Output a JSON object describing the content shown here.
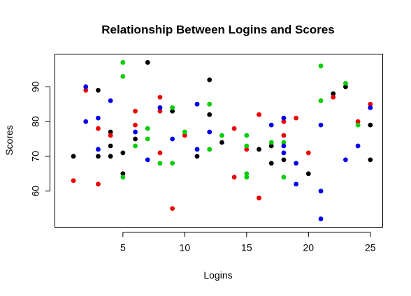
{
  "chart_data": {
    "type": "scatter",
    "title": "Relationship Between Logins and Scores",
    "xlabel": "Logins",
    "ylabel": "Scores",
    "xlim": [
      -0.5,
      26
    ],
    "ylim": [
      49.6,
      99.4
    ],
    "x_ticks": [
      5,
      10,
      15,
      20,
      25
    ],
    "y_ticks": [
      60,
      70,
      80,
      90
    ],
    "grid": false,
    "legend": "none",
    "colors": {
      "black": "#000000",
      "red": "#ee0000",
      "green": "#00cc00",
      "blue": "#0000ee"
    },
    "series": [
      {
        "color": "#000000",
        "points": [
          [
            1,
            70
          ],
          [
            3,
            89
          ],
          [
            3,
            70
          ],
          [
            4,
            77
          ],
          [
            4,
            73
          ],
          [
            4,
            70
          ],
          [
            5,
            71
          ],
          [
            5,
            65
          ],
          [
            6,
            75
          ],
          [
            7,
            97
          ],
          [
            9,
            83
          ],
          [
            11,
            70
          ],
          [
            12,
            92
          ],
          [
            12,
            82
          ],
          [
            13,
            74
          ],
          [
            16,
            72
          ],
          [
            17,
            73
          ],
          [
            17,
            68
          ],
          [
            18,
            69
          ],
          [
            20,
            65
          ],
          [
            22,
            88
          ],
          [
            23,
            90
          ],
          [
            25,
            79
          ],
          [
            25,
            69
          ]
        ]
      },
      {
        "color": "#ee0000",
        "points": [
          [
            1,
            63
          ],
          [
            2,
            89
          ],
          [
            3,
            78
          ],
          [
            3,
            62
          ],
          [
            4,
            76
          ],
          [
            6,
            83
          ],
          [
            6,
            79
          ],
          [
            8,
            87
          ],
          [
            8,
            83
          ],
          [
            8,
            71
          ],
          [
            9,
            55
          ],
          [
            10,
            76
          ],
          [
            14,
            78
          ],
          [
            14,
            64
          ],
          [
            15,
            72
          ],
          [
            16,
            82
          ],
          [
            16,
            58
          ],
          [
            18,
            80
          ],
          [
            18,
            76
          ],
          [
            19,
            81
          ],
          [
            20,
            71
          ],
          [
            22,
            87
          ],
          [
            24,
            80
          ],
          [
            25,
            85
          ]
        ]
      },
      {
        "color": "#00cc00",
        "points": [
          [
            5,
            97
          ],
          [
            5,
            93
          ],
          [
            5,
            64
          ],
          [
            6,
            73
          ],
          [
            7,
            78
          ],
          [
            7,
            75
          ],
          [
            8,
            68
          ],
          [
            9,
            84
          ],
          [
            9,
            68
          ],
          [
            10,
            77
          ],
          [
            12,
            85
          ],
          [
            12,
            72
          ],
          [
            13,
            76
          ],
          [
            15,
            76
          ],
          [
            15,
            73
          ],
          [
            15,
            65
          ],
          [
            15,
            64
          ],
          [
            17,
            74
          ],
          [
            18,
            74
          ],
          [
            18,
            64
          ],
          [
            21,
            96
          ],
          [
            21,
            86
          ],
          [
            23,
            91
          ],
          [
            24,
            79
          ]
        ]
      },
      {
        "color": "#0000ee",
        "points": [
          [
            2,
            90
          ],
          [
            2,
            80
          ],
          [
            3,
            81
          ],
          [
            3,
            72
          ],
          [
            4,
            86
          ],
          [
            6,
            77
          ],
          [
            7,
            69
          ],
          [
            8,
            84
          ],
          [
            9,
            75
          ],
          [
            11,
            85
          ],
          [
            11,
            72
          ],
          [
            12,
            77
          ],
          [
            17,
            79
          ],
          [
            18,
            81
          ],
          [
            18,
            73
          ],
          [
            18,
            71
          ],
          [
            19,
            68
          ],
          [
            19,
            62
          ],
          [
            21,
            79
          ],
          [
            21,
            60
          ],
          [
            21,
            52
          ],
          [
            23,
            69
          ],
          [
            24,
            73
          ],
          [
            25,
            84
          ]
        ]
      }
    ]
  }
}
